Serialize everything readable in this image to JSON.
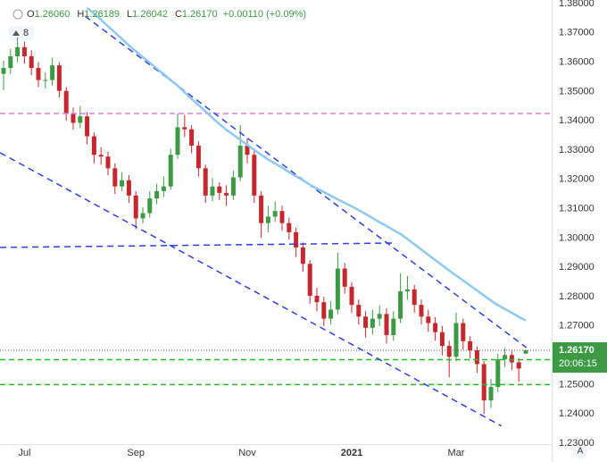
{
  "chart_data": {
    "type": "candlestick",
    "header": [
      {
        "key": "O",
        "value": "1.26060"
      },
      {
        "key": "H",
        "value": "1.26189"
      },
      {
        "key": "L",
        "value": "1.26042"
      },
      {
        "key": "C",
        "value": "1.26170"
      }
    ],
    "change": "+0.00110 (+0.09%)",
    "badge": "8",
    "corner_label": "A",
    "last_price_label": "1.26170",
    "countdown": "20:06:15",
    "up_color": "#3c9a45",
    "down_color": "#c4272e",
    "categories": [
      null,
      null,
      null,
      "Jul",
      null,
      null,
      null,
      null,
      null,
      null,
      null,
      null,
      null,
      null,
      null,
      null,
      null,
      null,
      null,
      "Sep",
      null,
      null,
      null,
      null,
      null,
      null,
      null,
      null,
      null,
      null,
      null,
      null,
      null,
      null,
      null,
      "Nov",
      null,
      null,
      null,
      null,
      null,
      null,
      null,
      null,
      null,
      null,
      null,
      null,
      null,
      null,
      "2021",
      null,
      null,
      null,
      null,
      null,
      null,
      null,
      null,
      null,
      null,
      null,
      null,
      null,
      null,
      "Mar",
      null,
      null,
      null,
      null,
      null,
      null,
      null,
      null,
      null,
      null
    ],
    "open": [
      1.356,
      1.358,
      1.362,
      1.3651,
      1.362,
      1.358,
      1.3539,
      1.3539,
      1.3589,
      1.3502,
      1.3424,
      1.3393,
      1.3415,
      1.3347,
      1.3284,
      1.3278,
      1.3238,
      1.3176,
      1.3197,
      1.3145,
      1.3067,
      1.3085,
      1.3135,
      1.316,
      1.3176,
      1.3284,
      1.3378,
      1.3371,
      1.3315,
      1.3238,
      1.3145,
      1.3176,
      1.3154,
      1.3145,
      1.3207,
      1.3315,
      1.3284,
      1.3145,
      1.3051,
      1.3073,
      1.3092,
      1.3051,
      1.302,
      1.2968,
      1.2912,
      1.2803,
      1.2781,
      1.2725,
      1.2756,
      1.2896,
      1.2834,
      1.2772,
      1.2732,
      1.2694,
      1.2725,
      1.2741,
      1.2669,
      1.2725,
      1.2818,
      1.2825,
      1.2772,
      1.2732,
      1.271,
      1.2679,
      1.2632,
      1.2595,
      1.271,
      1.2648,
      1.2617,
      1.257,
      1.2446,
      1.2492,
      1.2586,
      1.2601,
      1.2576,
      1.2606
    ],
    "high": [
      1.3605,
      1.3645,
      1.3685,
      1.367,
      1.364,
      1.36,
      1.3565,
      1.3615,
      1.36,
      1.3515,
      1.3445,
      1.345,
      1.343,
      1.336,
      1.331,
      1.3295,
      1.3255,
      1.3225,
      1.3215,
      1.316,
      1.3105,
      1.316,
      1.3185,
      1.321,
      1.3305,
      1.3425,
      1.342,
      1.3385,
      1.333,
      1.325,
      1.3205,
      1.319,
      1.318,
      1.323,
      1.3385,
      1.334,
      1.33,
      1.316,
      1.311,
      1.3125,
      1.311,
      1.307,
      1.3035,
      1.2985,
      1.2925,
      1.283,
      1.28,
      1.2785,
      1.295,
      1.2915,
      1.285,
      1.279,
      1.275,
      1.2755,
      1.277,
      1.276,
      1.275,
      1.288,
      1.287,
      1.284,
      1.279,
      1.2755,
      1.273,
      1.27,
      1.265,
      1.2745,
      1.2725,
      1.2665,
      1.263,
      1.258,
      1.252,
      1.2605,
      1.2625,
      1.2615,
      1.259,
      1.26189
    ],
    "low": [
      1.3505,
      1.356,
      1.36,
      1.3595,
      1.3555,
      1.3515,
      1.351,
      1.352,
      1.348,
      1.34,
      1.337,
      1.3375,
      1.332,
      1.3255,
      1.325,
      1.3215,
      1.315,
      1.316,
      1.312,
      1.303,
      1.305,
      1.307,
      1.3115,
      1.314,
      1.3165,
      1.327,
      1.3345,
      1.329,
      1.321,
      1.312,
      1.3125,
      1.313,
      1.311,
      1.313,
      1.3195,
      1.3255,
      1.312,
      1.3,
      1.302,
      1.3055,
      1.3025,
      1.2995,
      1.2935,
      1.2885,
      1.2775,
      1.275,
      1.27,
      1.2705,
      1.274,
      1.281,
      1.2745,
      1.2705,
      1.266,
      1.267,
      1.27,
      1.264,
      1.265,
      1.271,
      1.279,
      1.2745,
      1.2705,
      1.268,
      1.265,
      1.26,
      1.2525,
      1.258,
      1.262,
      1.259,
      1.254,
      1.24,
      1.242,
      1.2475,
      1.256,
      1.255,
      1.251,
      1.26042
    ],
    "close": [
      1.358,
      1.362,
      1.3651,
      1.362,
      1.358,
      1.3539,
      1.3539,
      1.3589,
      1.3502,
      1.3424,
      1.3393,
      1.3415,
      1.3347,
      1.3284,
      1.3278,
      1.3238,
      1.3176,
      1.3197,
      1.3145,
      1.3067,
      1.3085,
      1.3135,
      1.316,
      1.3176,
      1.3284,
      1.3378,
      1.3371,
      1.3315,
      1.3238,
      1.3145,
      1.3176,
      1.3154,
      1.3145,
      1.3207,
      1.3315,
      1.3284,
      1.3145,
      1.3051,
      1.3073,
      1.3092,
      1.3051,
      1.302,
      1.2968,
      1.2912,
      1.2803,
      1.2781,
      1.2725,
      1.2756,
      1.2896,
      1.2834,
      1.2772,
      1.2732,
      1.2694,
      1.2725,
      1.2741,
      1.2669,
      1.2725,
      1.2818,
      1.2825,
      1.2772,
      1.2732,
      1.271,
      1.2679,
      1.2632,
      1.2595,
      1.271,
      1.2648,
      1.2617,
      1.257,
      1.2446,
      1.2492,
      1.2586,
      1.2601,
      1.2576,
      1.2555,
      1.2617
    ],
    "moving_average": {
      "color": "#8ec8ef",
      "values": [
        null,
        null,
        null,
        null,
        null,
        null,
        null,
        null,
        null,
        null,
        null,
        null,
        1.3785,
        1.3766,
        1.3744,
        1.3722,
        1.3701,
        1.3679,
        1.3657,
        1.3637,
        1.3617,
        1.3598,
        1.3578,
        1.3559,
        1.3539,
        1.352,
        1.3497,
        1.3475,
        1.3454,
        1.3432,
        1.341,
        1.3389,
        1.3369,
        1.3352,
        1.3335,
        1.3318,
        1.3301,
        1.3284,
        1.3268,
        1.3254,
        1.324,
        1.3225,
        1.3211,
        1.3197,
        1.3182,
        1.3169,
        1.3157,
        1.3144,
        1.3132,
        1.312,
        1.3108,
        1.3095,
        1.3082,
        1.3068,
        1.3054,
        1.3041,
        1.3027,
        1.3014,
        1.2997,
        1.2979,
        1.2961,
        1.2943,
        1.2925,
        1.2907,
        1.2889,
        1.2872,
        1.2855,
        1.2838,
        1.2821,
        1.2804,
        1.2787,
        1.2771,
        1.2758,
        1.2745,
        1.2731,
        1.2719
      ]
    },
    "trendline_color": "#2f3fe0",
    "trendlines": [
      {
        "x": [
          11.7,
          75.1
        ],
        "y": [
          1.3757,
          1.2626
        ]
      },
      {
        "x": [
          -0.5,
          71.5
        ],
        "y": [
          1.3291,
          1.2359
        ]
      },
      {
        "x": [
          -0.5,
          55.9
        ],
        "y": [
          1.2968,
          1.2983
        ]
      }
    ],
    "levels": [
      {
        "value": 1.3425,
        "color": "#d183d8"
      },
      {
        "value": 1.2585,
        "color": "#25b925"
      },
      {
        "value": 1.25,
        "color": "#25b925"
      }
    ],
    "ylim": [
      1.2297,
      1.3812
    ],
    "yticks": [
      {
        "value": 1.38,
        "label": "1.38000"
      },
      {
        "value": 1.37,
        "label": "1.37000"
      },
      {
        "value": 1.36,
        "label": "1.36000"
      },
      {
        "value": 1.35,
        "label": "1.35000"
      },
      {
        "value": 1.34,
        "label": "1.34000"
      },
      {
        "value": 1.33,
        "label": "1.33000"
      },
      {
        "value": 1.32,
        "label": "1.32000"
      },
      {
        "value": 1.31,
        "label": "1.31000"
      },
      {
        "value": 1.3,
        "label": "1.30000"
      },
      {
        "value": 1.29,
        "label": "1.29000"
      },
      {
        "value": 1.28,
        "label": "1.28000"
      },
      {
        "value": 1.27,
        "label": "1.27000"
      },
      {
        "value": 1.25,
        "label": "1.25000"
      },
      {
        "value": 1.24,
        "label": "1.24000"
      },
      {
        "value": 1.23,
        "label": "1.23000"
      }
    ]
  }
}
